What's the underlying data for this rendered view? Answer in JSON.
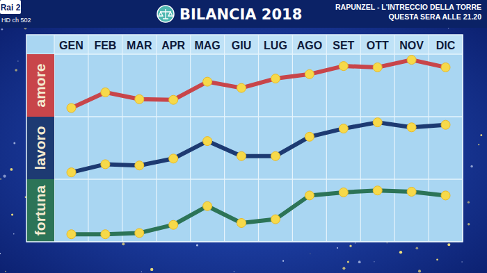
{
  "header": {
    "channel": "Rai 2",
    "channel_note": "HD ch 502",
    "promo": [
      "RAPUNZEL - L'INTRECCIO DELLA TORRE",
      "QUESTA SERA ALLE 21.20"
    ]
  },
  "chart_data": {
    "type": "line",
    "title": "BILANCIA 2018",
    "categories": [
      "GEN",
      "FEB",
      "MAR",
      "APR",
      "MAG",
      "GIU",
      "LUG",
      "AGO",
      "SET",
      "OTT",
      "NOV",
      "DIC"
    ],
    "series": [
      {
        "name": "amore",
        "color": "#c8454a",
        "values": [
          1.4,
          3.9,
          2.8,
          2.7,
          5.6,
          4.6,
          6.1,
          6.8,
          8.1,
          7.9,
          9.1,
          7.9
        ]
      },
      {
        "name": "lavoro",
        "color": "#1d3a72",
        "values": [
          1.1,
          2.4,
          2.2,
          3.3,
          6.1,
          3.7,
          3.7,
          6.8,
          8.1,
          9.1,
          8.3,
          8.7
        ]
      },
      {
        "name": "fortuna",
        "color": "#2c7457",
        "values": [
          1.2,
          1.2,
          1.4,
          2.7,
          5.7,
          3.0,
          3.6,
          7.4,
          7.9,
          8.2,
          8.0,
          7.4
        ]
      }
    ],
    "ylim": [
      0,
      10
    ],
    "grid": true,
    "tick_labels": "x",
    "marker": "circle"
  }
}
